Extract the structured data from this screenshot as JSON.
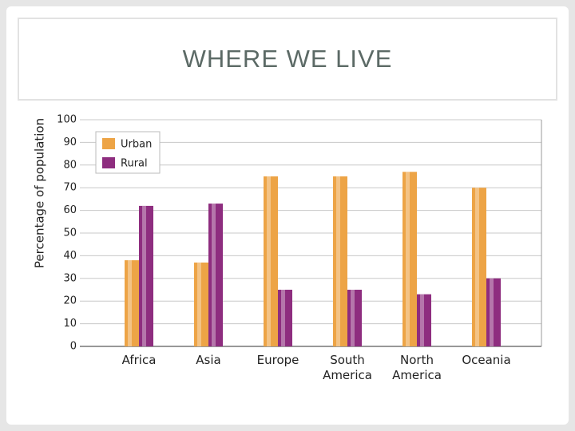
{
  "slide_title": "WHERE WE LIVE",
  "chart_data": {
    "type": "bar",
    "y_label": "Percentage of population",
    "categories": [
      "Africa",
      "Asia",
      "Europe",
      "South America",
      "North America",
      "Oceania"
    ],
    "series": [
      {
        "name": "Urban",
        "color": "#eda446",
        "values": [
          38,
          37,
          75,
          75,
          77,
          70
        ]
      },
      {
        "name": "Rural",
        "color": "#8e2d7f",
        "values": [
          62,
          63,
          25,
          25,
          23,
          30
        ]
      }
    ],
    "ylim": [
      0,
      100
    ],
    "yticks": [
      0,
      10,
      20,
      30,
      40,
      50,
      60,
      70,
      80,
      90,
      100
    ],
    "grid": true,
    "legend": "upper-left"
  }
}
